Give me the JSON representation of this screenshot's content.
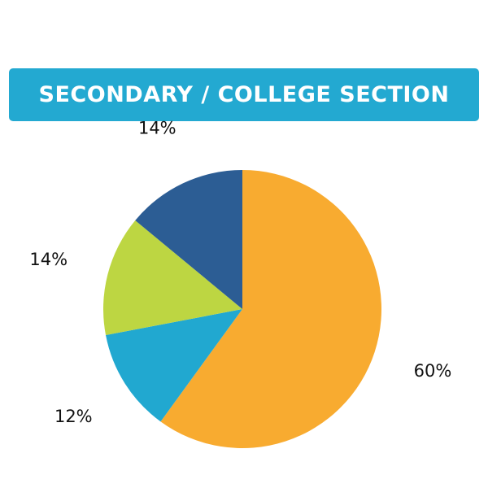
{
  "chart_data": {
    "type": "pie",
    "title": "SECONDARY / COLLEGE SECTION",
    "slices": [
      {
        "label": "60%",
        "value": 60,
        "color": "#f8ab30"
      },
      {
        "label": "12%",
        "value": 12,
        "color": "#21a8d0"
      },
      {
        "label": "14%",
        "value": 14,
        "color": "#bdd642"
      },
      {
        "label": "14%",
        "value": 14,
        "color": "#2c5d94"
      }
    ]
  },
  "colors": {
    "title_banner": "#23a9d1",
    "title_text": "#ffffff"
  }
}
